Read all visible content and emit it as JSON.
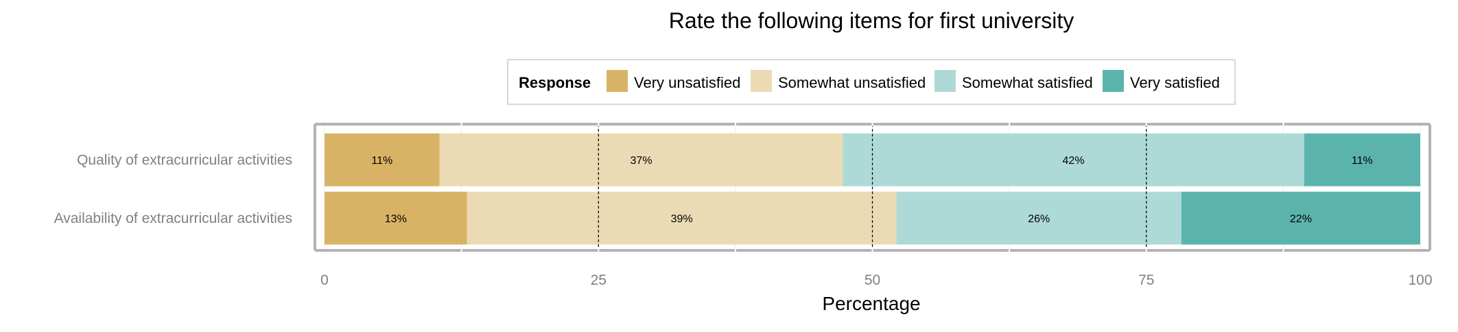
{
  "chart_data": {
    "type": "bar",
    "orientation": "horizontal",
    "stacked": true,
    "title": "Rate the following items for first university",
    "xlabel": "Percentage",
    "ylabel": "",
    "xlim": [
      0,
      100
    ],
    "xticks": [
      0,
      25,
      50,
      75,
      100
    ],
    "grid": true,
    "legend_position": "top",
    "legend_title": "Response",
    "categories": [
      "Quality of extracurricular activities",
      "Availability of extracurricular activities"
    ],
    "series": [
      {
        "name": "Very unsatisfied",
        "color": "#D9B365",
        "values": [
          10.5,
          13
        ],
        "labels": [
          "11%",
          "13%"
        ]
      },
      {
        "name": "Somewhat unsatisfied",
        "color": "#EBDAB3",
        "values": [
          36.8,
          39.2
        ],
        "labels": [
          "37%",
          "39%"
        ]
      },
      {
        "name": "Somewhat satisfied",
        "color": "#ADDAD6",
        "values": [
          42.1,
          26
        ],
        "labels": [
          "42%",
          "26%"
        ]
      },
      {
        "name": "Very satisfied",
        "color": "#5AB4AC",
        "values": [
          10.6,
          21.8
        ],
        "labels": [
          "11%",
          "22%"
        ]
      }
    ],
    "reference_lines": [
      25,
      50,
      75
    ]
  }
}
